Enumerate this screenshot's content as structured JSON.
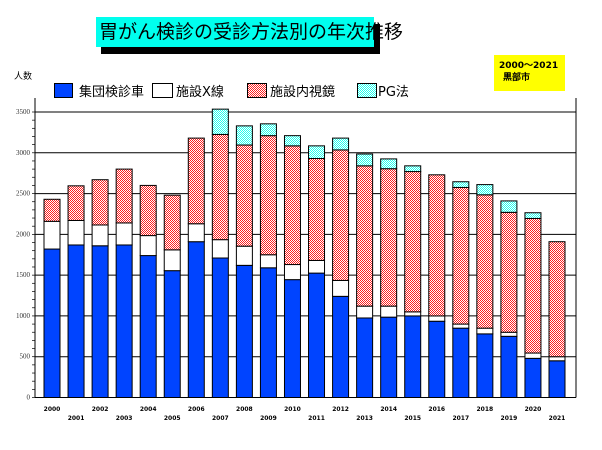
{
  "title": "胃がん検診の受診方法別の年次推移",
  "info": {
    "period": "2000～2021",
    "city": "黒部市"
  },
  "chart_data": {
    "type": "bar",
    "stacked": true,
    "title": "胃がん検診の受診方法別の年次推移",
    "ylabel": "人数",
    "xlabel": "",
    "ylim": [
      0,
      3500
    ],
    "yticks": [
      0,
      500,
      1000,
      1500,
      2000,
      2500,
      3000,
      3500
    ],
    "grid": true,
    "legend": "top",
    "categories": [
      "2000",
      "2001",
      "2002",
      "2003",
      "2004",
      "2005",
      "2006",
      "2007",
      "2008",
      "2009",
      "2010",
      "2011",
      "2012",
      "2013",
      "2014",
      "2015",
      "2016",
      "2017",
      "2018",
      "2019",
      "2020",
      "2021"
    ],
    "series": [
      {
        "name": "集団検診車",
        "color": "#0044ff",
        "values": [
          1820,
          1870,
          1860,
          1870,
          1740,
          1555,
          1910,
          1710,
          1620,
          1590,
          1445,
          1525,
          1240,
          975,
          985,
          1000,
          935,
          850,
          780,
          750,
          480,
          450
        ]
      },
      {
        "name": "施設X線",
        "color": "#ffffff",
        "values": [
          340,
          300,
          255,
          270,
          245,
          255,
          220,
          225,
          235,
          160,
          185,
          155,
          195,
          145,
          135,
          50,
          65,
          50,
          70,
          50,
          65,
          50
        ]
      },
      {
        "name": "施設内視鏡",
        "color": "#ff4444",
        "values": [
          270,
          425,
          555,
          660,
          615,
          670,
          1050,
          1290,
          1240,
          1460,
          1455,
          1250,
          1600,
          1720,
          1685,
          1720,
          1730,
          1675,
          1635,
          1470,
          1650,
          1410
        ]
      },
      {
        "name": "PG法",
        "color": "#33ffee",
        "values": [
          0,
          0,
          0,
          0,
          0,
          0,
          0,
          310,
          235,
          145,
          125,
          155,
          145,
          145,
          120,
          70,
          0,
          70,
          125,
          140,
          70,
          0
        ]
      }
    ]
  }
}
